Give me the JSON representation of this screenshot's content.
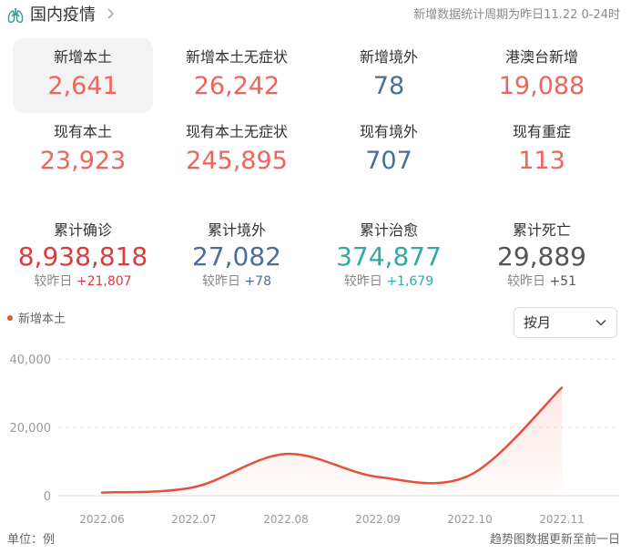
{
  "header": {
    "title": "国内疫情",
    "period": "新增数据统计周期为昨日11.22 0-24时"
  },
  "icons": {
    "header_icon": "lung-icon",
    "title_arrow": "chevron-right-icon",
    "select_arrow": "chevron-down-icon"
  },
  "stats_row1": [
    {
      "label": "新增本土",
      "value": "2,641"
    },
    {
      "label": "新增本土无症状",
      "value": "26,242"
    },
    {
      "label": "新增境外",
      "value": "78"
    },
    {
      "label": "港澳台新增",
      "value": "19,088"
    }
  ],
  "stats_row2": [
    {
      "label": "现有本土",
      "value": "23,923"
    },
    {
      "label": "现有本土无症状",
      "value": "245,895"
    },
    {
      "label": "现有境外",
      "value": "707"
    },
    {
      "label": "现有重症",
      "value": "113"
    }
  ],
  "cumulative": [
    {
      "label": "累计确诊",
      "value": "8,938,818",
      "delta_prefix": "较昨日",
      "delta": "+21,807",
      "color": "#e03a3a"
    },
    {
      "label": "累计境外",
      "value": "27,082",
      "delta_prefix": "较昨日",
      "delta": "+78",
      "color": "#4a6d9c"
    },
    {
      "label": "累计治愈",
      "value": "374,877",
      "delta_prefix": "较昨日",
      "delta": "+1,679",
      "color": "#32a9a5"
    },
    {
      "label": "累计死亡",
      "value": "29,889",
      "delta_prefix": "较昨日",
      "delta": "+51",
      "color": "#555555"
    }
  ],
  "colors": {
    "accent_red": "#f0645a",
    "accent_blue": "#4a6d9c",
    "line": "#e2523a"
  },
  "chart_controls": {
    "legend": "新增本土",
    "select_value": "按月"
  },
  "chart_data": {
    "type": "line",
    "title": "",
    "xlabel": "",
    "ylabel": "",
    "categories": [
      "2022.06",
      "2022.07",
      "2022.08",
      "2022.09",
      "2022.10",
      "2022.11"
    ],
    "yticks": [
      "0",
      "20,000",
      "40,000"
    ],
    "ylim": [
      0,
      40000
    ],
    "grid": "horizontal dashed",
    "series": [
      {
        "name": "新增本土",
        "points": [
          {
            "x": "2022.06",
            "y": 900
          },
          {
            "x": "2022.07",
            "y": 2500
          },
          {
            "x": "2022.08",
            "y": 12200
          },
          {
            "x": "2022.09",
            "y": 5500
          },
          {
            "x": "2022.10",
            "y": 6000
          },
          {
            "x": "2022.11",
            "y": 31600
          }
        ]
      }
    ]
  },
  "footer": {
    "unit": "单位：例",
    "note": "趋势图数据更新至前一日"
  }
}
